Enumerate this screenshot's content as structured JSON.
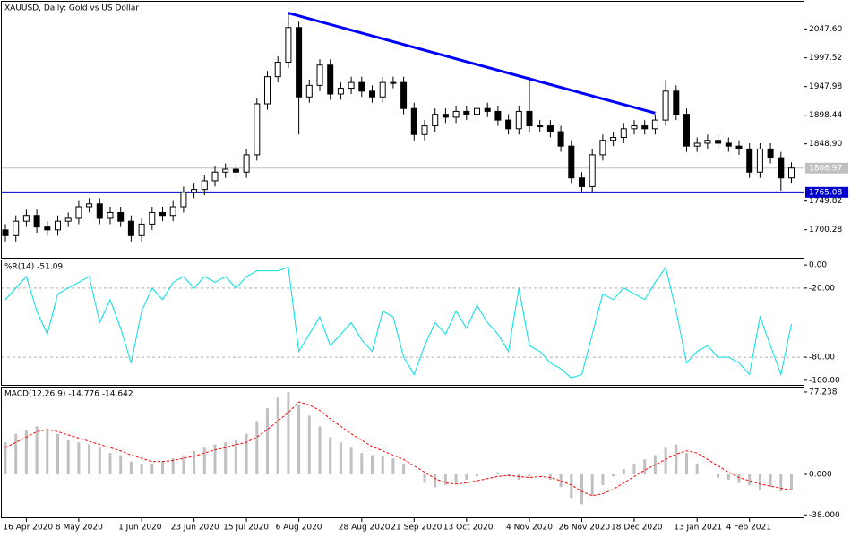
{
  "chart_data": [
    {
      "type": "candlestick",
      "title": "XAUUSD, Daily:  Gold vs US Dollar",
      "open": [
        1700,
        1690,
        1715,
        1725,
        1705,
        1700,
        1715,
        1720,
        1740,
        1745,
        1720,
        1730,
        1715,
        1690,
        1710,
        1730,
        1725,
        1740,
        1765,
        1770,
        1785,
        1800,
        1805,
        1800,
        1830,
        1918,
        1965,
        1990,
        2050,
        1930,
        1950,
        1985,
        1935,
        1945,
        1955,
        1940,
        1930,
        1955,
        1955,
        1910,
        1865,
        1880,
        1900,
        1895,
        1905,
        1900,
        1910,
        1905,
        1890,
        1875,
        1905,
        1880,
        1880,
        1870,
        1845,
        1790,
        1775,
        1830,
        1855,
        1860,
        1875,
        1880,
        1875,
        1890,
        1940,
        1900,
        1845,
        1850,
        1855,
        1850,
        1845,
        1840,
        1800,
        1840,
        1825,
        1790
      ],
      "high": [
        1710,
        1725,
        1735,
        1735,
        1715,
        1725,
        1730,
        1750,
        1755,
        1755,
        1740,
        1740,
        1725,
        1720,
        1740,
        1740,
        1750,
        1775,
        1780,
        1795,
        1810,
        1815,
        1815,
        1840,
        1928,
        1975,
        2000,
        2075,
        2060,
        1960,
        1995,
        1995,
        1955,
        1965,
        1965,
        1950,
        1965,
        1965,
        1965,
        1920,
        1890,
        1910,
        1910,
        1915,
        1915,
        1920,
        1920,
        1915,
        1900,
        1915,
        1965,
        1890,
        1890,
        1880,
        1855,
        1800,
        1840,
        1865,
        1870,
        1885,
        1890,
        1890,
        1900,
        1960,
        1950,
        1910,
        1860,
        1865,
        1865,
        1860,
        1855,
        1850,
        1850,
        1850,
        1835,
        1817
      ],
      "low": [
        1680,
        1680,
        1705,
        1695,
        1690,
        1690,
        1705,
        1710,
        1730,
        1710,
        1710,
        1705,
        1680,
        1680,
        1700,
        1715,
        1715,
        1730,
        1755,
        1760,
        1775,
        1790,
        1790,
        1790,
        1820,
        1908,
        1955,
        1980,
        1865,
        1920,
        1940,
        1925,
        1925,
        1935,
        1930,
        1920,
        1920,
        1945,
        1900,
        1855,
        1855,
        1870,
        1885,
        1885,
        1890,
        1890,
        1895,
        1880,
        1865,
        1865,
        1870,
        1870,
        1860,
        1835,
        1780,
        1765,
        1765,
        1820,
        1845,
        1850,
        1865,
        1865,
        1865,
        1880,
        1890,
        1835,
        1835,
        1840,
        1840,
        1835,
        1830,
        1790,
        1790,
        1815,
        1768,
        1780
      ],
      "close": [
        1690,
        1715,
        1725,
        1705,
        1700,
        1715,
        1720,
        1740,
        1745,
        1720,
        1730,
        1715,
        1690,
        1710,
        1730,
        1725,
        1740,
        1765,
        1770,
        1785,
        1800,
        1805,
        1800,
        1830,
        1918,
        1965,
        1990,
        2050,
        1930,
        1950,
        1985,
        1935,
        1945,
        1955,
        1940,
        1930,
        1955,
        1955,
        1910,
        1865,
        1880,
        1900,
        1895,
        1905,
        1900,
        1910,
        1905,
        1890,
        1875,
        1905,
        1880,
        1880,
        1870,
        1845,
        1790,
        1775,
        1830,
        1855,
        1860,
        1875,
        1880,
        1875,
        1890,
        1940,
        1900,
        1845,
        1850,
        1855,
        1850,
        1845,
        1840,
        1800,
        1840,
        1825,
        1790,
        1807
      ],
      "color": "#000000",
      "ylim": [
        1651.8,
        2094.5
      ],
      "yticks": [
        {
          "value": 2047.6,
          "label": "2047.60"
        },
        1997.52,
        1947.98,
        1898.44,
        {
          "value": 1848.9,
          "label": "1848.90"
        },
        1749.82,
        1700.28
      ],
      "trendline": {
        "x": [
          27,
          62
        ],
        "y": [
          2075,
          1902
        ],
        "color": "#0000ff"
      },
      "hline": {
        "value": 1765.08,
        "color": "#0000cc"
      },
      "current_price": {
        "value": 1806.97,
        "color": "#c0c0c0"
      }
    },
    {
      "type": "line",
      "title": "%R(14) -51.09",
      "values": [
        -30,
        -20,
        -10,
        -40,
        -60,
        -25,
        -20,
        -15,
        -10,
        -50,
        -30,
        -55,
        -85,
        -40,
        -20,
        -30,
        -15,
        -10,
        -20,
        -10,
        -15,
        -10,
        -20,
        -10,
        -5,
        -5,
        -5,
        -2,
        -75,
        -60,
        -45,
        -70,
        -60,
        -50,
        -65,
        -75,
        -40,
        -45,
        -80,
        -95,
        -70,
        -50,
        -60,
        -40,
        -55,
        -35,
        -50,
        -60,
        -75,
        -20,
        -70,
        -75,
        -85,
        -90,
        -98,
        -95,
        -60,
        -25,
        -30,
        -20,
        -25,
        -30,
        -15,
        -2,
        -40,
        -85,
        -75,
        -70,
        -80,
        -80,
        -85,
        -95,
        -45,
        -70,
        -95,
        -51.09
      ],
      "color": "#00e0e0",
      "ylim": [
        -104,
        4
      ],
      "yticks": [
        {
          "value": 0,
          "label": "0.00"
        },
        {
          "value": -20,
          "label": "-20.00"
        },
        {
          "value": -80,
          "label": "-80.00"
        },
        {
          "value": -100,
          "label": "-100.00"
        }
      ],
      "levels": [
        -20,
        -80
      ]
    },
    {
      "type": "macd",
      "title": "MACD(12,26,9) -14.776 -14.642",
      "histogram": [
        30,
        38,
        42,
        45,
        42,
        38,
        32,
        30,
        28,
        25,
        20,
        18,
        12,
        10,
        10,
        12,
        15,
        18,
        22,
        25,
        28,
        30,
        32,
        38,
        50,
        62,
        72,
        77,
        65,
        55,
        45,
        35,
        30,
        25,
        20,
        18,
        17,
        15,
        10,
        0,
        -8,
        -12,
        -10,
        -8,
        -5,
        -2,
        0,
        2,
        -2,
        -5,
        -2,
        0,
        -5,
        -12,
        -22,
        -28,
        -20,
        -10,
        -2,
        5,
        10,
        14,
        18,
        25,
        28,
        20,
        10,
        0,
        -3,
        -5,
        -8,
        -10,
        -15,
        -12,
        -16,
        -14.776
      ],
      "signal": [
        25,
        30,
        35,
        40,
        42,
        40,
        37,
        34,
        31,
        28,
        25,
        22,
        18,
        15,
        12,
        12,
        13,
        15,
        17,
        20,
        23,
        25,
        28,
        30,
        35,
        42,
        50,
        58,
        68,
        65,
        60,
        52,
        45,
        38,
        32,
        26,
        22,
        18,
        14,
        8,
        2,
        -4,
        -8,
        -9,
        -8,
        -6,
        -4,
        -2,
        -1,
        -2,
        -3,
        -2,
        -3,
        -6,
        -10,
        -16,
        -20,
        -18,
        -14,
        -8,
        -2,
        4,
        9,
        14,
        19,
        22,
        20,
        14,
        8,
        2,
        -3,
        -6,
        -9,
        -11,
        -13,
        -14.642
      ],
      "histogram_color": "#c0c0c0",
      "signal_color": "#ff0000",
      "ylim": [
        -40.3,
        81.4
      ],
      "yticks": [
        77.238,
        {
          "value": 0,
          "label": "0.000"
        },
        {
          "value": -38,
          "label": "-38.000"
        }
      ],
      "xticks": [
        {
          "value": 2,
          "label": "16 Apr 2020"
        },
        {
          "value": 7,
          "label": "8 May 2020"
        },
        {
          "value": 13,
          "label": "1 Jun 2020"
        },
        {
          "value": 18,
          "label": "23 Jun 2020"
        },
        {
          "value": 23,
          "label": "15 Jul 2020"
        },
        {
          "value": 28,
          "label": "6 Aug 2020"
        },
        {
          "value": 34,
          "label": "28 Aug 2020"
        },
        {
          "value": 39,
          "label": "21 Sep 2020"
        },
        {
          "value": 44,
          "label": "13 Oct 2020"
        },
        {
          "value": 50,
          "label": "4 Nov 2020"
        },
        {
          "value": 55,
          "label": "26 Nov 2020"
        },
        {
          "value": 60,
          "label": "18 Dec 2020"
        },
        {
          "value": 66,
          "label": "13 Jan 2021"
        },
        {
          "value": 71,
          "label": "4 Feb 2021"
        }
      ]
    }
  ]
}
